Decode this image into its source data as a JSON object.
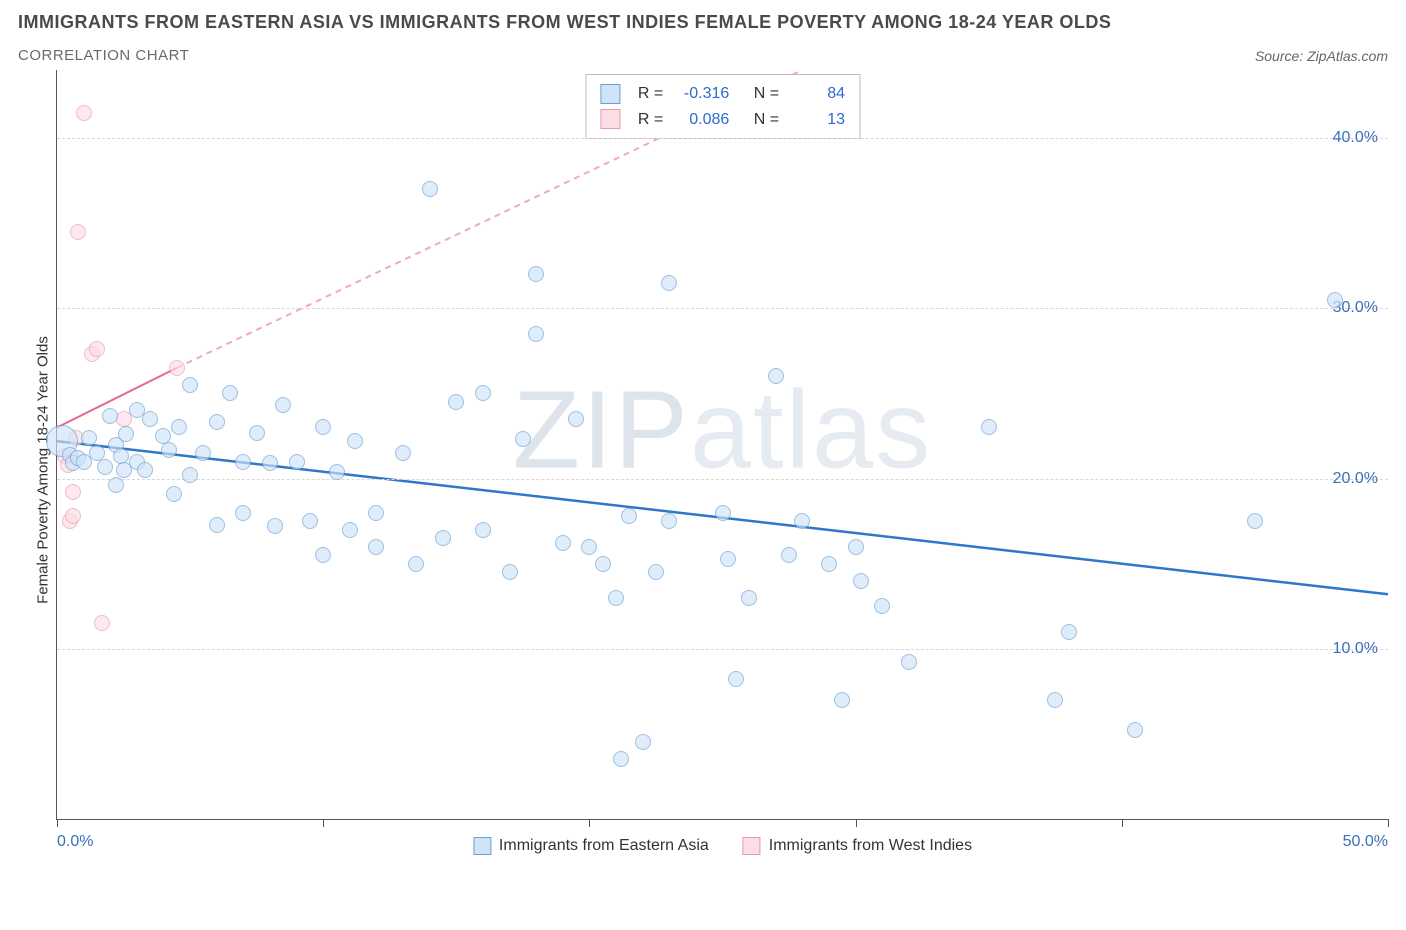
{
  "title": "IMMIGRANTS FROM EASTERN ASIA VS IMMIGRANTS FROM WEST INDIES FEMALE POVERTY AMONG 18-24 YEAR OLDS",
  "subtitle": "CORRELATION CHART",
  "source_label": "Source:",
  "source_name": "ZipAtlas.com",
  "ylabel": "Female Poverty Among 18-24 Year Olds",
  "watermark": {
    "z": "ZIP",
    "rest": "atlas"
  },
  "chart": {
    "type": "scatter",
    "xlim": [
      0,
      50
    ],
    "ylim": [
      0,
      44
    ],
    "x_ticks": [
      0,
      10,
      20,
      30,
      40,
      50
    ],
    "x_tick_labels": {
      "0": "0.0%",
      "50": "50.0%"
    },
    "y_gridlines": [
      10,
      20,
      30,
      40
    ],
    "y_tick_labels": {
      "10": "10.0%",
      "20": "20.0%",
      "30": "30.0%",
      "40": "40.0%"
    },
    "background_color": "#ffffff",
    "grid_color": "#d8d8d8",
    "axis_label_color": "#3a6fb7"
  },
  "series": [
    {
      "id": "eastern_asia",
      "label": "Immigrants from Eastern Asia",
      "fill": "#cfe3f7",
      "stroke": "#6a9fd4",
      "fill_opacity": 0.65,
      "marker_radius": 8,
      "trend": {
        "x1": 0,
        "y1": 22.2,
        "x2": 50,
        "y2": 13.2,
        "color": "#2f77c9",
        "width": 2.5,
        "dash": "none"
      },
      "stats": {
        "R": "-0.316",
        "N": "84"
      },
      "points": [
        [
          0.2,
          22.2,
          16
        ],
        [
          0.5,
          21.4
        ],
        [
          0.6,
          20.9
        ],
        [
          0.8,
          21.2
        ],
        [
          1.0,
          21.0
        ],
        [
          1.2,
          22.4
        ],
        [
          1.5,
          21.5
        ],
        [
          1.8,
          20.7
        ],
        [
          2.0,
          23.7
        ],
        [
          2.2,
          19.6
        ],
        [
          2.2,
          22.0
        ],
        [
          2.4,
          21.3
        ],
        [
          2.5,
          20.5
        ],
        [
          2.6,
          22.6
        ],
        [
          3.0,
          21.0
        ],
        [
          3.0,
          24.0
        ],
        [
          3.3,
          20.5
        ],
        [
          3.5,
          23.5
        ],
        [
          4.0,
          22.5
        ],
        [
          4.2,
          21.7
        ],
        [
          4.4,
          19.1
        ],
        [
          4.6,
          23.0
        ],
        [
          5.0,
          20.2
        ],
        [
          5.0,
          25.5
        ],
        [
          5.5,
          21.5
        ],
        [
          6.0,
          23.3
        ],
        [
          6.0,
          17.3
        ],
        [
          6.5,
          25.0
        ],
        [
          7.0,
          21.0
        ],
        [
          7.0,
          18.0
        ],
        [
          7.5,
          22.7
        ],
        [
          8.0,
          20.9
        ],
        [
          8.2,
          17.2
        ],
        [
          8.5,
          24.3
        ],
        [
          9.0,
          21.0
        ],
        [
          9.5,
          17.5
        ],
        [
          10.0,
          23.0
        ],
        [
          10.0,
          15.5
        ],
        [
          10.5,
          20.4
        ],
        [
          11.0,
          17.0
        ],
        [
          11.2,
          22.2
        ],
        [
          12.0,
          18.0
        ],
        [
          12.0,
          16.0
        ],
        [
          13.0,
          21.5
        ],
        [
          13.5,
          15.0
        ],
        [
          14.0,
          37.0
        ],
        [
          14.5,
          16.5
        ],
        [
          15.0,
          24.5
        ],
        [
          16.0,
          25.0
        ],
        [
          16.0,
          17.0
        ],
        [
          17.0,
          14.5
        ],
        [
          17.5,
          22.3
        ],
        [
          18.0,
          32.0
        ],
        [
          18.0,
          28.5
        ],
        [
          19.0,
          16.2
        ],
        [
          19.5,
          23.5
        ],
        [
          20.0,
          16.0
        ],
        [
          20.5,
          15.0
        ],
        [
          21.0,
          13.0
        ],
        [
          21.2,
          3.5
        ],
        [
          21.5,
          17.8
        ],
        [
          22.0,
          4.5
        ],
        [
          22.5,
          14.5
        ],
        [
          23.0,
          31.5
        ],
        [
          23.0,
          17.5
        ],
        [
          25.0,
          18.0
        ],
        [
          25.2,
          15.3
        ],
        [
          25.5,
          8.2
        ],
        [
          26.0,
          13.0
        ],
        [
          27.0,
          26.0
        ],
        [
          27.5,
          15.5
        ],
        [
          28.0,
          17.5
        ],
        [
          29.0,
          15.0
        ],
        [
          29.5,
          7.0
        ],
        [
          30.0,
          16.0
        ],
        [
          30.2,
          14.0
        ],
        [
          31.0,
          12.5
        ],
        [
          32.0,
          9.2
        ],
        [
          35.0,
          23.0
        ],
        [
          37.5,
          7.0
        ],
        [
          38.0,
          11.0
        ],
        [
          40.5,
          5.2
        ],
        [
          45.0,
          17.5
        ],
        [
          48.0,
          30.5
        ]
      ]
    },
    {
      "id": "west_indies",
      "label": "Immigrants from West Indies",
      "fill": "#fddde4",
      "stroke": "#e79bb0",
      "fill_opacity": 0.65,
      "marker_radius": 8,
      "trend": {
        "solid": {
          "x1": 0,
          "y1": 23.0,
          "x2": 4.5,
          "y2": 26.5
        },
        "dashed": {
          "x1": 4.5,
          "y1": 26.5,
          "x2": 28,
          "y2": 44
        },
        "color_solid": "#e36a8c",
        "color_dashed": "#f0a9bd",
        "width": 2,
        "dash": "6 5"
      },
      "stats": {
        "R": "0.086",
        "N": "13"
      },
      "points": [
        [
          0.3,
          21.3
        ],
        [
          0.4,
          20.8
        ],
        [
          0.5,
          17.5
        ],
        [
          0.6,
          17.8
        ],
        [
          0.6,
          19.2
        ],
        [
          0.7,
          22.4
        ],
        [
          0.8,
          34.5
        ],
        [
          1.0,
          41.5
        ],
        [
          1.3,
          27.3
        ],
        [
          1.5,
          27.6
        ],
        [
          1.7,
          11.5
        ],
        [
          2.5,
          23.5
        ],
        [
          4.5,
          26.5
        ]
      ]
    }
  ],
  "stat_box": {
    "r_label": "R =",
    "n_label": "N ="
  },
  "bottom_legend_gap": 34
}
